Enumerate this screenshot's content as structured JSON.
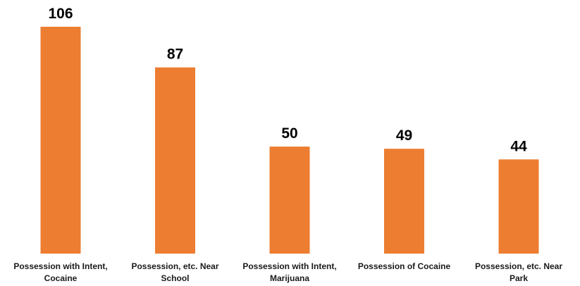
{
  "chart_data": {
    "type": "bar",
    "categories": [
      [
        "Possession with Intent,",
        "Cocaine"
      ],
      [
        "Possession, etc. Near",
        "School"
      ],
      [
        "Possession with Intent,",
        "Marijuana"
      ],
      [
        "Possession of Cocaine"
      ],
      [
        "Possession, etc. Near",
        "Park"
      ]
    ],
    "values": [
      106,
      87,
      50,
      49,
      44
    ],
    "data_labels": [
      "106",
      "87",
      "50",
      "49",
      "44"
    ],
    "title": "",
    "xlabel": "",
    "ylabel": "",
    "ylim": [
      0,
      106
    ],
    "grid": false,
    "legend": "none",
    "bar_color": "#ED7D31"
  }
}
